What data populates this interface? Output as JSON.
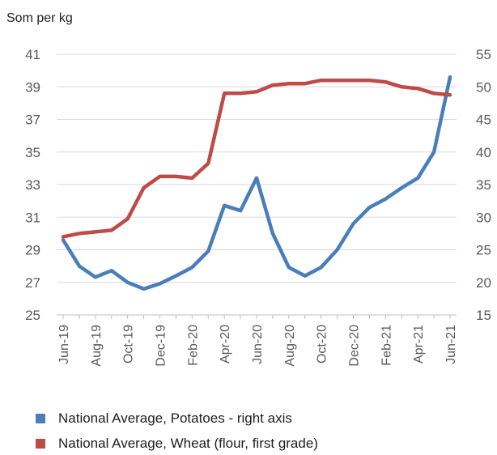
{
  "chart_data": {
    "type": "line",
    "unit_label": "Som per kg",
    "x": [
      "Jun-19",
      "Jul-19",
      "Aug-19",
      "Sep-19",
      "Oct-19",
      "Nov-19",
      "Dec-19",
      "Jan-20",
      "Feb-20",
      "Mar-20",
      "Apr-20",
      "May-20",
      "Jun-20",
      "Jul-20",
      "Aug-20",
      "Sep-20",
      "Oct-20",
      "Nov-20",
      "Dec-20",
      "Jan-21",
      "Feb-21",
      "Mar-21",
      "Apr-21",
      "May-21",
      "Jun-21"
    ],
    "x_tick_labels": [
      "Jun-19",
      "Aug-19",
      "Oct-19",
      "Dec-19",
      "Feb-20",
      "Apr-20",
      "Jun-20",
      "Aug-20",
      "Oct-20",
      "Dec-20",
      "Feb-21",
      "Apr-21",
      "Jun-21"
    ],
    "y_left": {
      "range": [
        25,
        41
      ],
      "ticks": [
        25,
        27,
        29,
        31,
        33,
        35,
        37,
        39,
        41
      ]
    },
    "y_right": {
      "range": [
        15,
        55
      ],
      "ticks": [
        15,
        20,
        25,
        30,
        35,
        40,
        45,
        50,
        55
      ]
    },
    "grid": true,
    "legend_position": "bottom",
    "series": [
      {
        "name": "National Average, Potatoes - right axis",
        "axis": "right",
        "color": "#4a7ebb",
        "values": [
          26.5,
          22.5,
          20.8,
          21.8,
          20.0,
          19.0,
          19.8,
          21.0,
          22.3,
          24.8,
          31.8,
          31.0,
          36.0,
          27.5,
          22.3,
          21.0,
          22.3,
          25.0,
          29.0,
          31.5,
          32.8,
          34.5,
          36.0,
          40.0,
          51.5
        ]
      },
      {
        "name": "National Average, Wheat (flour, first grade)",
        "axis": "left",
        "color": "#be4b48",
        "values": [
          29.8,
          30.0,
          30.1,
          30.2,
          30.9,
          32.8,
          33.5,
          33.5,
          33.4,
          34.3,
          38.6,
          38.6,
          38.7,
          39.1,
          39.2,
          39.2,
          39.4,
          39.4,
          39.4,
          39.4,
          39.3,
          39.0,
          38.9,
          38.6,
          38.5
        ]
      }
    ]
  }
}
